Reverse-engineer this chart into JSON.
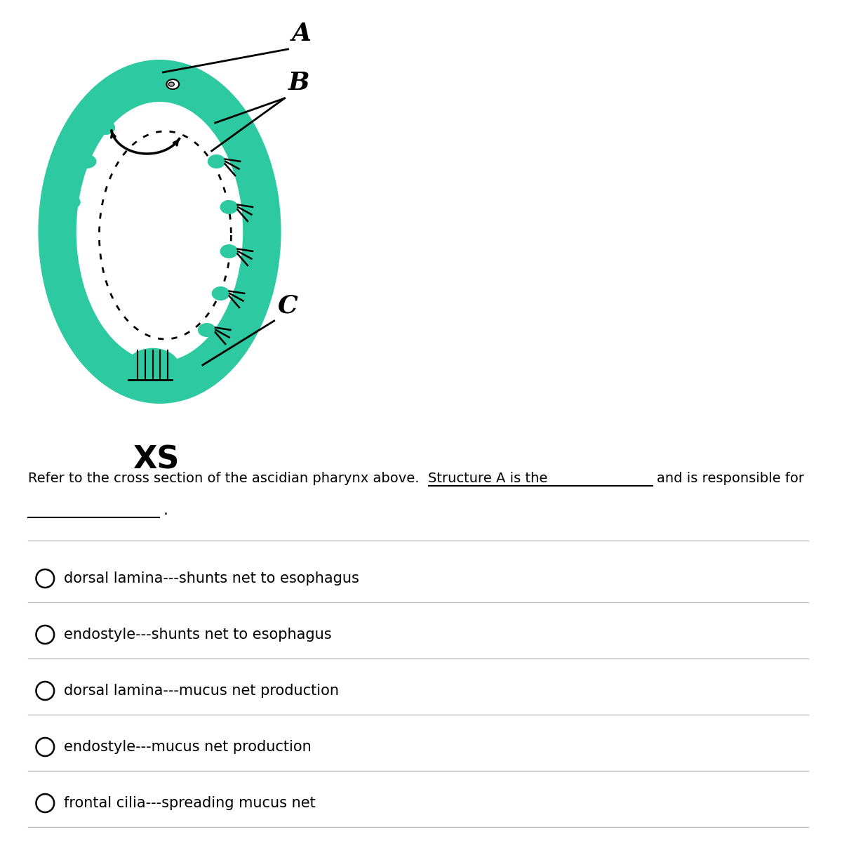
{
  "bg_color": "#ffffff",
  "teal": "#2dc9a0",
  "black": "#000000",
  "gray": "#bbbbbb",
  "label_A": "A",
  "label_B": "B",
  "label_C": "C",
  "label_XS": "XS",
  "question_text": "Refer to the cross section of the ascidian pharynx above.  Structure A is the",
  "responsible_text": "and is responsible for",
  "options": [
    "dorsal lamina---shunts net to esophagus",
    "endostyle---shunts net to esophagus",
    "dorsal lamina---mucus net production",
    "endostyle---mucus net production",
    "frontal cilia---spreading mucus net"
  ]
}
